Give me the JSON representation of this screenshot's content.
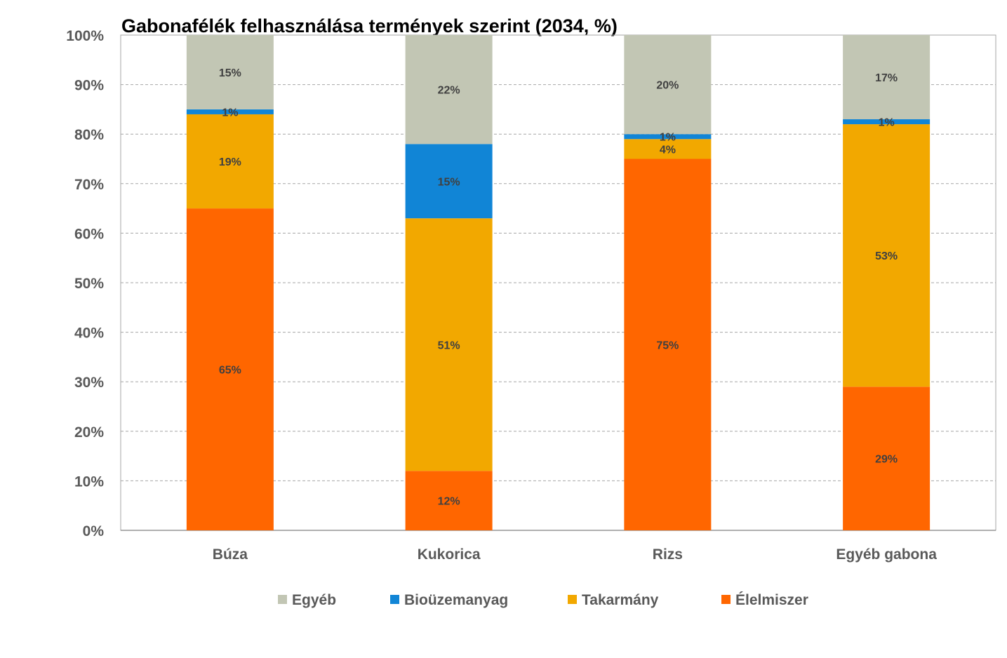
{
  "chart_data": {
    "type": "bar",
    "stacked": true,
    "title": "Gabonafélék felhasználása termények szerint (2034, %)",
    "categories": [
      "Búza",
      "Kukorica",
      "Rizs",
      "Egyéb gabona"
    ],
    "series": [
      {
        "name": "Élelmiszer",
        "color": "#ff6600",
        "values": [
          65,
          12,
          75,
          29
        ],
        "labels": [
          "65%",
          "12%",
          "75%",
          "29%"
        ]
      },
      {
        "name": "Takarmány",
        "color": "#f2a800",
        "values": [
          19,
          51,
          4,
          53
        ],
        "labels": [
          "19%",
          "51%",
          "4%",
          "53%"
        ]
      },
      {
        "name": "Bioüzemanyag",
        "color": "#1185d6",
        "values": [
          1,
          15,
          1,
          1
        ],
        "labels": [
          "1%",
          "15%",
          "1%",
          "1%"
        ]
      },
      {
        "name": "Egyéb",
        "color": "#c2c6b4",
        "values": [
          15,
          22,
          20,
          17
        ],
        "labels": [
          "15%",
          "22%",
          "20%",
          "17%"
        ]
      }
    ],
    "ylim": [
      0,
      100
    ],
    "yticks": [
      "0%",
      "10%",
      "20%",
      "30%",
      "40%",
      "50%",
      "60%",
      "70%",
      "80%",
      "90%",
      "100%"
    ],
    "grid": true,
    "legend": {
      "position": "bottom",
      "order": [
        "Egyéb",
        "Bioüzemanyag",
        "Takarmány",
        "Élelmiszer"
      ]
    }
  }
}
